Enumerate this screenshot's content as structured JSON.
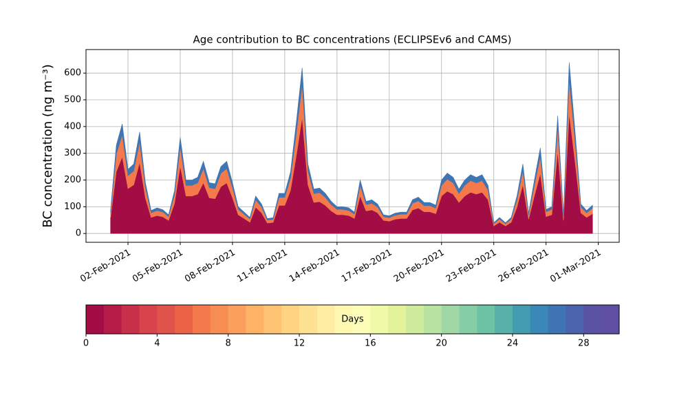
{
  "chart_data": {
    "type": "stacked_area",
    "title": "Age contribution to BC concentrations (ECLIPSEv6 and CAMS)",
    "y_label": "BC concentration (ng m⁻³)",
    "x": [
      0,
      0.33,
      0.67,
      1,
      1.33,
      1.67,
      2,
      2.33,
      2.67,
      3,
      3.33,
      3.67,
      4,
      4.33,
      4.67,
      5,
      5.33,
      5.67,
      6,
      6.33,
      6.67,
      7,
      7.33,
      7.67,
      8,
      8.33,
      8.67,
      9,
      9.33,
      9.67,
      10,
      10.33,
      10.67,
      11,
      11.33,
      11.67,
      12,
      12.33,
      12.67,
      13,
      13.33,
      13.67,
      14,
      14.33,
      14.67,
      15,
      15.33,
      15.67,
      16,
      16.33,
      16.67,
      17,
      17.33,
      17.67,
      18,
      18.33,
      18.67,
      19,
      19.33,
      19.67,
      20,
      20.33,
      20.67,
      21,
      21.33,
      21.67,
      22,
      22.33,
      22.67,
      23,
      23.33,
      23.67,
      24,
      24.33,
      24.67,
      25,
      25.33,
      25.67,
      26,
      26.33,
      26.67,
      27,
      27.33,
      27.67
    ],
    "series": [
      {
        "color": "#a30d45",
        "values": [
          60,
          231,
          287,
          168,
          182,
          266,
          133,
          60,
          67,
          62,
          49,
          112,
          252,
          140,
          140,
          147,
          189,
          133,
          130,
          175,
          189,
          133,
          70,
          56,
          42,
          98,
          77,
          39,
          41,
          105,
          105,
          161,
          294,
          434,
          182,
          116,
          119,
          105,
          84,
          70,
          70,
          67,
          56,
          140,
          84,
          88,
          77,
          49,
          46,
          53,
          56,
          56,
          88,
          95,
          81,
          81,
          74,
          140,
          158,
          147,
          116,
          140,
          154,
          147,
          154,
          126,
          28,
          42,
          28,
          42,
          98,
          182,
          53,
          140,
          224,
          63,
          70,
          308,
          49,
          448,
          266,
          77,
          60,
          74
        ]
      },
      {
        "color": "#f47a4b",
        "values": [
          17,
          66,
          82,
          48,
          52,
          76,
          38,
          17,
          19,
          18,
          14,
          32,
          72,
          40,
          40,
          42,
          54,
          38,
          37,
          50,
          54,
          38,
          20,
          16,
          12,
          28,
          22,
          11,
          12,
          30,
          30,
          46,
          84,
          124,
          52,
          33,
          34,
          30,
          24,
          20,
          20,
          19,
          16,
          40,
          24,
          25,
          22,
          14,
          13,
          15,
          16,
          16,
          25,
          27,
          23,
          23,
          21,
          40,
          45,
          42,
          33,
          40,
          44,
          42,
          44,
          36,
          8,
          12,
          8,
          12,
          28,
          52,
          15,
          40,
          64,
          18,
          20,
          88,
          14,
          128,
          76,
          22,
          17,
          21
        ]
      },
      {
        "color": "#3e75b2",
        "values": [
          9,
          33,
          41,
          24,
          26,
          38,
          19,
          9,
          10,
          9,
          7,
          16,
          36,
          20,
          20,
          21,
          27,
          19,
          19,
          25,
          27,
          19,
          10,
          8,
          6,
          14,
          11,
          6,
          6,
          15,
          15,
          23,
          42,
          62,
          26,
          17,
          17,
          15,
          12,
          10,
          10,
          10,
          8,
          20,
          12,
          13,
          11,
          7,
          7,
          8,
          8,
          8,
          13,
          14,
          12,
          12,
          11,
          20,
          23,
          21,
          17,
          20,
          22,
          21,
          22,
          18,
          4,
          6,
          4,
          6,
          14,
          26,
          8,
          20,
          32,
          9,
          10,
          44,
          7,
          64,
          38,
          11,
          9,
          11
        ]
      }
    ],
    "xlim": [
      -1.41,
      29.2
    ],
    "ylim": [
      -33,
      688
    ],
    "xticks": [
      {
        "value": 1,
        "label": "02-Feb-2021"
      },
      {
        "value": 4,
        "label": "05-Feb-2021"
      },
      {
        "value": 7,
        "label": "08-Feb-2021"
      },
      {
        "value": 10,
        "label": "11-Feb-2021"
      },
      {
        "value": 13,
        "label": "14-Feb-2021"
      },
      {
        "value": 16,
        "label": "17-Feb-2021"
      },
      {
        "value": 19,
        "label": "20-Feb-2021"
      },
      {
        "value": 22,
        "label": "23-Feb-2021"
      },
      {
        "value": 25,
        "label": "26-Feb-2021"
      },
      {
        "value": 28,
        "label": "01-Mar-2021"
      }
    ],
    "yticks": [
      0,
      100,
      200,
      300,
      400,
      500,
      600
    ],
    "grid": true,
    "colorbar": {
      "label": "Days",
      "lim": [
        0,
        30
      ],
      "ticks": [
        0,
        4,
        8,
        12,
        16,
        20,
        24,
        28
      ],
      "colors": [
        "#a30d45",
        "#b71c48",
        "#c8304a",
        "#d8444c",
        "#e0534a",
        "#ea6347",
        "#f47a4b",
        "#f88d53",
        "#fba05c",
        "#fdb366",
        "#fdc373",
        "#fed382",
        "#fee191",
        "#feeda2",
        "#fff8b2",
        "#fbfdb8",
        "#f0f9a8",
        "#e2f39a",
        "#cfec9d",
        "#b9e3a0",
        "#9fd8a4",
        "#85cda5",
        "#6cc2a5",
        "#57b0a9",
        "#449cb1",
        "#3a88b8",
        "#3e75b2",
        "#4b63aa",
        "#5a52a3",
        "#5e4fa2"
      ]
    }
  }
}
